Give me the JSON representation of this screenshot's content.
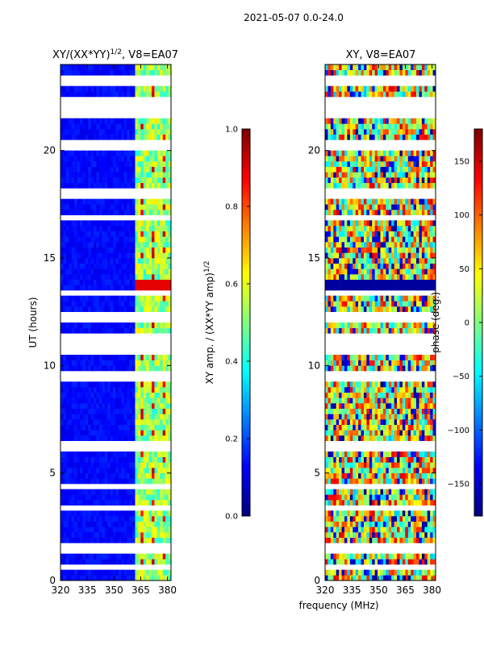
{
  "chart_data": [
    {
      "type": "heatmap",
      "suptitle": "2021-05-07 0.0-24.0",
      "title_main": "XY/(XX*YY)",
      "title_exp": "1/2",
      "title_suffix": ", V8=EA07",
      "xlabel": "",
      "ylabel": "UT (hours)",
      "xlim": [
        320,
        382
      ],
      "ylim": [
        0,
        24
      ],
      "xticks": [
        320,
        335,
        350,
        365,
        380
      ],
      "yticks": [
        0,
        5,
        10,
        15,
        20
      ],
      "colormap": "jet",
      "colorbar": {
        "label_main": "XY amp. / (XX*YY amp)",
        "label_exp": "1/2",
        "range": [
          0.0,
          1.0
        ],
        "ticks": [
          "0.0",
          "0.2",
          "0.4",
          "0.6",
          "0.8",
          "1.0"
        ]
      },
      "description_values": {
        "low_band_mhz": [
          320,
          362
        ],
        "low_band_level": 0.1,
        "high_band_mhz": [
          362,
          382
        ],
        "high_band_level": 0.4,
        "peak_channels_mhz": [
          366,
          372,
          378
        ],
        "peak_level": 0.85,
        "flagged_hours_approx": [
          23.2,
          22.3,
          21.8,
          20.2,
          18.0,
          16.9,
          13.4,
          12.3,
          11.2,
          10.8,
          9.5,
          6.3,
          4.4,
          3.4,
          1.5,
          0.6
        ]
      }
    },
    {
      "type": "heatmap",
      "title": "XY, V8=EA07",
      "xlabel": "frequency (MHz)",
      "ylabel": "",
      "xlim": [
        320,
        382
      ],
      "ylim": [
        0,
        24
      ],
      "xticks": [
        320,
        335,
        350,
        365,
        380
      ],
      "yticks": [
        0,
        5,
        10,
        15,
        20
      ],
      "colormap": "jet",
      "colorbar": {
        "label": "phase (deg.)",
        "range": [
          -180,
          180
        ],
        "ticks": [
          "−150",
          "−100",
          "−50",
          "0",
          "50",
          "100",
          "150"
        ]
      },
      "description_values": {
        "dominant_phase_deg": 40,
        "phase_spread_deg": 180,
        "low_phase_band_hours": [
          13.4,
          13.9
        ]
      }
    }
  ],
  "axis_labels": {
    "left_y": "UT (hours)",
    "right_x": "frequency (MHz)",
    "right_cbar": "phase (deg.)"
  },
  "colors": {
    "jet_low": "#00007f",
    "jet_high": "#7f0000",
    "gap": "#ffffff"
  }
}
